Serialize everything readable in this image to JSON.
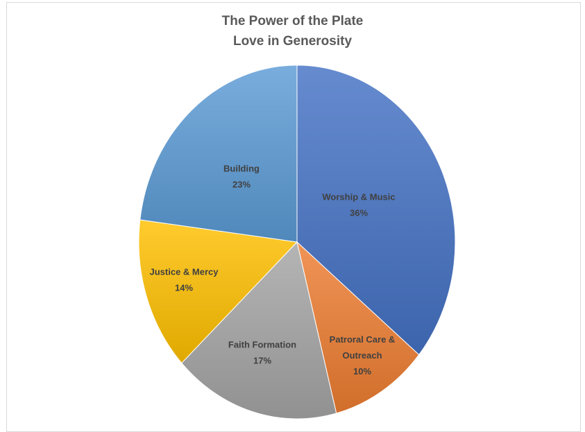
{
  "chart_data": {
    "type": "pie",
    "title": "The Power of the Plate",
    "subtitle": "Love in Generosity",
    "start_angle_deg": 0,
    "direction": "clockwise",
    "slices": [
      {
        "label": "Worship & Music",
        "label_lines": [
          "Worship & Music",
          "36%"
        ],
        "value": 36,
        "color": "#4472c4"
      },
      {
        "label": "Patroral Care & Outreach",
        "label_lines": [
          "Patroral Care &",
          "Outreach",
          "10%"
        ],
        "value": 10,
        "color": "#ed7d31"
      },
      {
        "label": "Faith Formation",
        "label_lines": [
          "Faith Formation",
          "17%"
        ],
        "value": 17,
        "color": "#a5a5a5"
      },
      {
        "label": "Justice & Mercy",
        "label_lines": [
          "Justice & Mercy",
          "14%"
        ],
        "value": 14,
        "color": "#ffc000"
      },
      {
        "label": "Building",
        "label_lines": [
          "Building",
          "23%"
        ],
        "value": 23,
        "color": "#5b9bd5"
      }
    ],
    "label_color": "#404040",
    "legend": "none"
  }
}
